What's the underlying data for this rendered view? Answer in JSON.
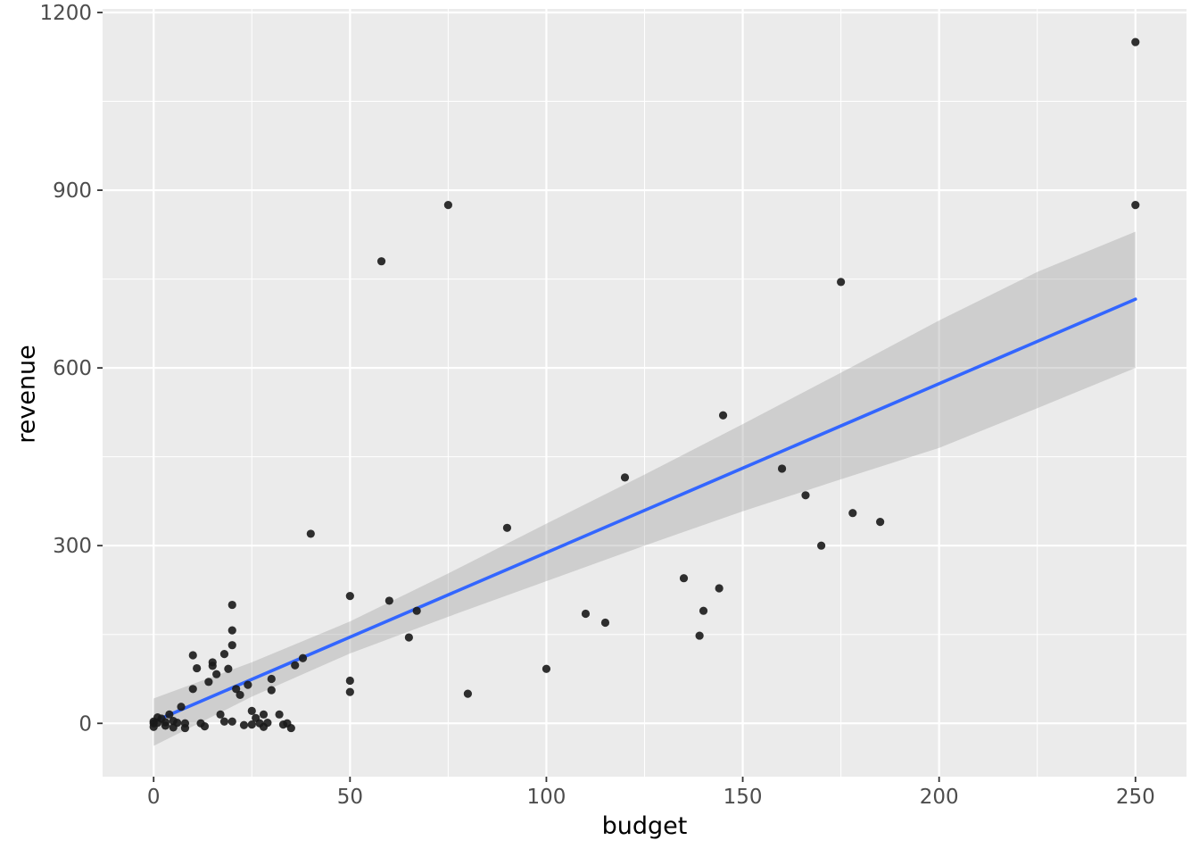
{
  "figure": {
    "background": "#FFFFFF"
  },
  "chart_data": {
    "type": "scatter",
    "title": "",
    "xlabel": "budget",
    "ylabel": "revenue",
    "legend": "none",
    "grid": "on",
    "xlim": [
      -13,
      263
    ],
    "ylim": [
      -90,
      1206
    ],
    "x_breaks": [
      0,
      50,
      100,
      150,
      200,
      250
    ],
    "y_breaks": [
      0,
      300,
      600,
      900,
      1200
    ],
    "x_minor_breaks": [
      25,
      75,
      125,
      175,
      225
    ],
    "y_minor_breaks": [
      150,
      450,
      750,
      1050
    ],
    "x_tick_labels": [
      "0",
      "50",
      "100",
      "150",
      "200",
      "250"
    ],
    "y_tick_labels": [
      "0",
      "300",
      "600",
      "900",
      "1200"
    ],
    "points": [
      [
        0,
        -6
      ],
      [
        0,
        0
      ],
      [
        0,
        3
      ],
      [
        1,
        1
      ],
      [
        1,
        10
      ],
      [
        2,
        8
      ],
      [
        3,
        -4
      ],
      [
        3,
        2
      ],
      [
        4,
        15
      ],
      [
        5,
        -7
      ],
      [
        5,
        4
      ],
      [
        6,
        1
      ],
      [
        7,
        28
      ],
      [
        8,
        -8
      ],
      [
        8,
        0
      ],
      [
        10,
        58
      ],
      [
        10,
        115
      ],
      [
        11,
        93
      ],
      [
        12,
        0
      ],
      [
        13,
        -5
      ],
      [
        14,
        70
      ],
      [
        15,
        97
      ],
      [
        15,
        103
      ],
      [
        16,
        83
      ],
      [
        17,
        15
      ],
      [
        18,
        3
      ],
      [
        18,
        117
      ],
      [
        19,
        92
      ],
      [
        20,
        3
      ],
      [
        20,
        132
      ],
      [
        20,
        157
      ],
      [
        20,
        200
      ],
      [
        21,
        58
      ],
      [
        22,
        48
      ],
      [
        23,
        -3
      ],
      [
        24,
        65
      ],
      [
        25,
        -2
      ],
      [
        25,
        21
      ],
      [
        26,
        9
      ],
      [
        27,
        0
      ],
      [
        28,
        -6
      ],
      [
        28,
        15
      ],
      [
        29,
        1
      ],
      [
        30,
        56
      ],
      [
        30,
        75
      ],
      [
        32,
        15
      ],
      [
        33,
        -2
      ],
      [
        34,
        0
      ],
      [
        35,
        -8
      ],
      [
        36,
        98
      ],
      [
        38,
        110
      ],
      [
        40,
        320
      ],
      [
        50,
        53
      ],
      [
        50,
        72
      ],
      [
        50,
        215
      ],
      [
        58,
        780
      ],
      [
        60,
        207
      ],
      [
        65,
        145
      ],
      [
        67,
        190
      ],
      [
        75,
        875
      ],
      [
        80,
        50
      ],
      [
        90,
        330
      ],
      [
        100,
        92
      ],
      [
        110,
        185
      ],
      [
        115,
        170
      ],
      [
        120,
        415
      ],
      [
        135,
        245
      ],
      [
        139,
        148
      ],
      [
        140,
        190
      ],
      [
        144,
        228
      ],
      [
        145,
        520
      ],
      [
        160,
        430
      ],
      [
        166,
        385
      ],
      [
        170,
        300
      ],
      [
        175,
        745
      ],
      [
        178,
        355
      ],
      [
        185,
        340
      ],
      [
        250,
        875
      ],
      [
        250,
        1150
      ]
    ],
    "smooth_line": {
      "x": [
        0,
        250
      ],
      "y": [
        3,
        716
      ]
    },
    "ribbon": {
      "x": [
        0,
        25,
        50,
        75,
        100,
        125,
        150,
        175,
        200,
        225,
        250
      ],
      "lower": [
        -38,
        45,
        118,
        180,
        240,
        300,
        358,
        412,
        465,
        532,
        600
      ],
      "upper": [
        42,
        103,
        172,
        253,
        337,
        420,
        505,
        592,
        680,
        762,
        830
      ]
    },
    "colors": {
      "panel": "#EBEBEB",
      "grid": "#FFFFFF",
      "point": "#1A1A1A",
      "line": "#3366FF",
      "ribbon": "#999999",
      "tick": "#333333",
      "tick_label": "#4D4D4D",
      "axis_title": "#000000"
    }
  }
}
